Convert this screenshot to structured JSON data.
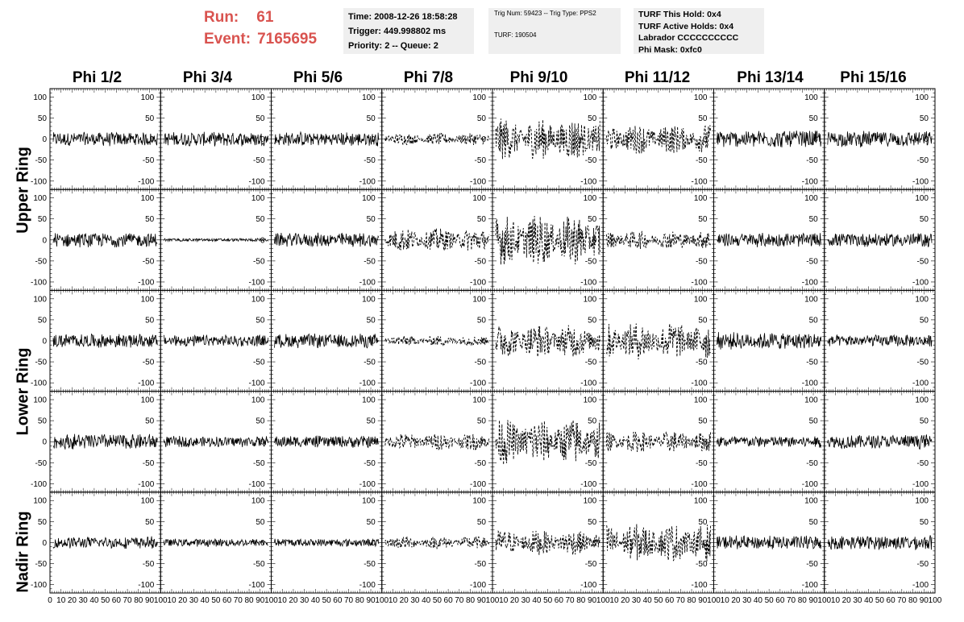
{
  "run_info": {
    "run_label": "Run:",
    "run_value": "61",
    "event_label": "Event:",
    "event_value": "7165695"
  },
  "time_box": {
    "time": "Time: 2008-12-26 18:58:28",
    "trigger": "Trigger: 449.998802 ms",
    "priority": "Priority: 2 -- Queue: 2"
  },
  "trig_box": {
    "trig": "Trig Num: 59423 -- Trig Type: PPS2",
    "turf": "TURF: 190504"
  },
  "turf_box": {
    "this_hold": "TURF This Hold: 0x4",
    "active_holds": "TURF Active Holds: 0x4",
    "labrador": "Labrador CCCCCCCCCC",
    "phi_mask": "Phi Mask: 0xfc0"
  },
  "columns": [
    "Phi 1/2",
    "Phi 3/4",
    "Phi 5/6",
    "Phi 7/8",
    "Phi 9/10",
    "Phi 11/12",
    "Phi 13/14",
    "Phi 15/16"
  ],
  "row_labels": {
    "upper": "Upper Ring",
    "lower": "Lower Ring",
    "nadir": "Nadir Ring"
  },
  "chart_data": {
    "type": "line",
    "ylim": [
      -120,
      120
    ],
    "xlim": [
      0,
      100
    ],
    "y_ticks": [
      "100",
      "50",
      "0",
      "-50",
      "-100"
    ],
    "x_ticks": [
      "0",
      "10",
      "20",
      "30",
      "40",
      "50",
      "60",
      "70",
      "80",
      "90",
      "100"
    ],
    "amplitude_grid": [
      [
        18,
        18,
        18,
        14,
        50,
        35,
        22,
        20
      ],
      [
        18,
        4,
        18,
        28,
        60,
        22,
        18,
        18
      ],
      [
        18,
        15,
        18,
        12,
        40,
        45,
        22,
        15
      ],
      [
        20,
        14,
        15,
        20,
        55,
        25,
        15,
        18
      ],
      [
        15,
        10,
        10,
        15,
        30,
        45,
        18,
        18
      ]
    ],
    "dashed_grid": [
      [
        false,
        false,
        false,
        true,
        true,
        true,
        false,
        false
      ],
      [
        false,
        false,
        false,
        true,
        true,
        true,
        false,
        false
      ],
      [
        false,
        false,
        false,
        true,
        true,
        true,
        false,
        false
      ],
      [
        false,
        false,
        false,
        true,
        true,
        true,
        false,
        false
      ],
      [
        false,
        false,
        false,
        true,
        true,
        true,
        false,
        false
      ]
    ]
  }
}
